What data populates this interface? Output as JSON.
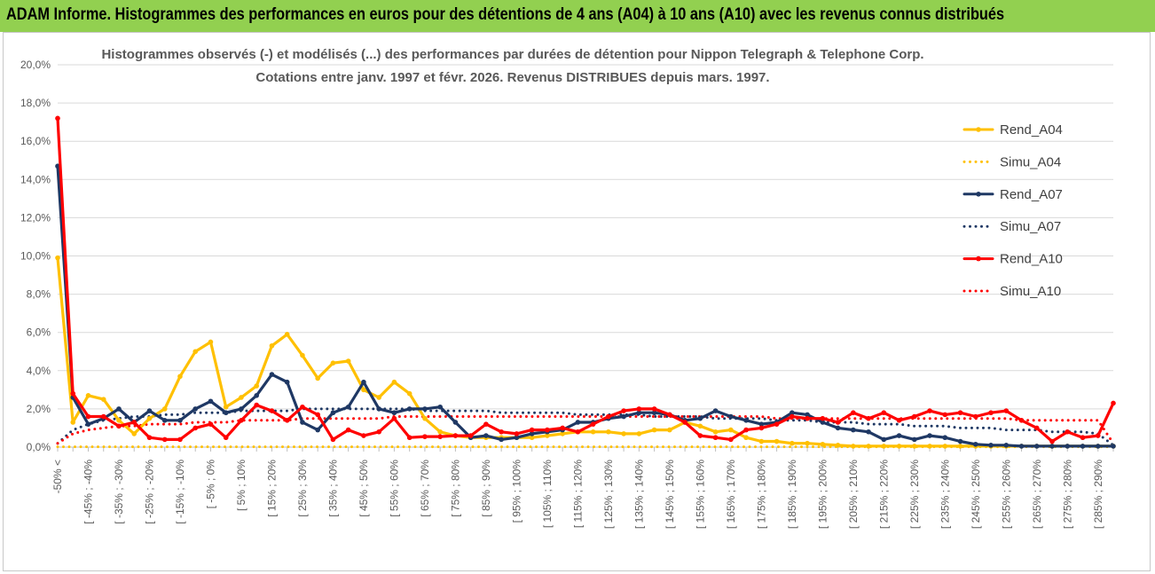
{
  "banner": {
    "title": "ADAM Informe. Histogrammes des performances en euros pour des détentions de 4 ans (A04) à 10 ans (A10) avec les revenus connus distribués"
  },
  "chart_data": {
    "type": "line",
    "title_line1": "Histogrammes observés (-) et modélisés (...) des performances par durées de détention pour Nippon Telegraph & Telephone Corp.",
    "title_line2": "Cotations entre janv. 1997 et févr. 2026. Revenus DISTRIBUES depuis mars. 1997.",
    "xlabel": "",
    "ylabel": "",
    "ylim": [
      0,
      20
    ],
    "y_ticks": [
      "0,0%",
      "2,0%",
      "4,0%",
      "6,0%",
      "8,0%",
      "10,0%",
      "12,0%",
      "14,0%",
      "16,0%",
      "18,0%",
      "20,0%"
    ],
    "x_labels": [
      "-50% <",
      "[ -45% ; -40%",
      "[ -35% ; -30%",
      "[ -25% ; -20%",
      "[ -15% ; -10%",
      "[ -5% ; 0%",
      "[ 5% ; 10%",
      "[ 15% ; 20%",
      "[ 25% ; 30%",
      "[ 35% ; 40%",
      "[ 45% ; 50%",
      "[ 55% ; 60%",
      "[ 65% ; 70%",
      "[ 75% ; 80%",
      "[ 85% ; 90%",
      "[ 95% ; 100%",
      "[ 105% ; 110%",
      "[ 115% ; 120%",
      "[ 125% ; 130%",
      "[ 135% ; 140%",
      "[ 145% ; 150%",
      "[ 155% ; 160%",
      "[ 165% ; 170%",
      "[ 175% ; 180%",
      "[ 185% ; 190%",
      "[ 195% ; 200%",
      "[ 205% ; 210%",
      "[ 215% ; 220%",
      "[ 225% ; 230%",
      "[ 235% ; 240%",
      "[ 245% ; 250%",
      "[ 255% ; 260%",
      "[ 265% ; 270%",
      "[ 275% ; 280%",
      "[ 285% ; 290%"
    ],
    "n_points": 70,
    "series": [
      {
        "name": "Rend_A04",
        "color": "#FFC000",
        "style": "solid",
        "values": [
          9.9,
          1.3,
          2.7,
          2.5,
          1.4,
          0.7,
          1.5,
          2.0,
          3.7,
          5.0,
          5.5,
          2.1,
          2.6,
          3.2,
          5.3,
          5.9,
          4.8,
          3.6,
          4.4,
          4.5,
          3.0,
          2.6,
          3.4,
          2.8,
          1.5,
          0.8,
          0.6,
          0.5,
          0.5,
          0.5,
          0.5,
          0.5,
          0.6,
          0.7,
          0.8,
          0.8,
          0.8,
          0.7,
          0.7,
          0.9,
          0.9,
          1.3,
          1.1,
          0.8,
          0.9,
          0.5,
          0.3,
          0.3,
          0.2,
          0.2,
          0.15,
          0.1,
          0.05,
          0.05,
          0.05,
          0.05,
          0.05,
          0.05,
          0.05,
          0.05,
          0.05,
          0.05,
          0.05,
          0.05,
          0.05,
          0.05,
          0.05,
          0.05,
          0.05,
          0.05
        ]
      },
      {
        "name": "Simu_A04",
        "color": "#FFC000",
        "style": "dotted",
        "values": [
          0.02,
          0.02,
          0.02,
          0.02,
          0.02,
          0.02,
          0.02,
          0.02,
          0.02,
          0.02,
          0.02,
          0.02,
          0.02,
          0.02,
          0.02,
          0.02,
          0.02,
          0.02,
          0.02,
          0.02,
          0.02,
          0.02,
          0.02,
          0.02,
          0.02,
          0.02,
          0.02,
          0.02,
          0.02,
          0.02,
          0.02,
          0.02,
          0.02,
          0.02,
          0.02,
          0.02,
          0.02,
          0.02,
          0.02,
          0.02,
          0.02,
          0.02,
          0.02,
          0.02,
          0.02,
          0.02,
          0.02,
          0.02,
          0.02,
          0.02,
          0.02,
          0.02,
          0.02,
          0.02,
          0.02,
          0.02,
          0.02,
          0.02,
          0.02,
          0.02,
          0.02,
          0.02,
          0.02,
          0.02,
          0.02,
          0.02,
          0.02,
          0.02,
          0.02,
          0.02
        ]
      },
      {
        "name": "Rend_A07",
        "color": "#1F3864",
        "style": "solid",
        "values": [
          14.7,
          2.6,
          1.2,
          1.5,
          2.0,
          1.3,
          1.9,
          1.4,
          1.4,
          2.0,
          2.4,
          1.8,
          2.0,
          2.7,
          3.8,
          3.4,
          1.3,
          0.9,
          1.8,
          2.1,
          3.4,
          2.0,
          1.8,
          2.0,
          2.0,
          2.1,
          1.3,
          0.5,
          0.6,
          0.4,
          0.5,
          0.7,
          0.8,
          0.9,
          1.3,
          1.3,
          1.5,
          1.6,
          1.8,
          1.8,
          1.7,
          1.4,
          1.5,
          1.9,
          1.6,
          1.4,
          1.2,
          1.3,
          1.8,
          1.7,
          1.3,
          1.0,
          0.9,
          0.8,
          0.4,
          0.6,
          0.4,
          0.6,
          0.5,
          0.3,
          0.15,
          0.1,
          0.1,
          0.05,
          0.05,
          0.05,
          0.05,
          0.05,
          0.05,
          0.05
        ]
      },
      {
        "name": "Simu_A07",
        "color": "#1F3864",
        "style": "dotted",
        "values": [
          0.2,
          0.9,
          1.2,
          1.4,
          1.5,
          1.6,
          1.6,
          1.7,
          1.7,
          1.8,
          1.8,
          1.8,
          1.9,
          1.9,
          1.9,
          1.9,
          2.0,
          2.0,
          2.0,
          2.0,
          2.0,
          2.0,
          2.0,
          2.0,
          1.9,
          1.9,
          1.9,
          1.9,
          1.9,
          1.8,
          1.8,
          1.8,
          1.8,
          1.8,
          1.7,
          1.7,
          1.7,
          1.7,
          1.7,
          1.6,
          1.6,
          1.6,
          1.6,
          1.5,
          1.5,
          1.5,
          1.5,
          1.4,
          1.4,
          1.4,
          1.3,
          1.3,
          1.3,
          1.2,
          1.2,
          1.2,
          1.1,
          1.1,
          1.1,
          1.0,
          1.0,
          1.0,
          0.9,
          0.9,
          0.9,
          0.8,
          0.8,
          0.8,
          0.7,
          0.1
        ]
      },
      {
        "name": "Rend_A10",
        "color": "#FF0000",
        "style": "solid",
        "values": [
          17.2,
          2.8,
          1.6,
          1.6,
          1.1,
          1.3,
          0.5,
          0.4,
          0.4,
          1.0,
          1.2,
          0.5,
          1.4,
          2.2,
          1.9,
          1.4,
          2.1,
          1.7,
          0.4,
          0.9,
          0.6,
          0.8,
          1.5,
          0.5,
          0.55,
          0.55,
          0.6,
          0.6,
          1.2,
          0.8,
          0.7,
          0.9,
          0.9,
          1.0,
          0.8,
          1.2,
          1.6,
          1.9,
          2.0,
          2.0,
          1.7,
          1.3,
          0.6,
          0.5,
          0.4,
          0.9,
          1.0,
          1.2,
          1.6,
          1.5,
          1.5,
          1.3,
          1.8,
          1.5,
          1.8,
          1.4,
          1.6,
          1.9,
          1.7,
          1.8,
          1.6,
          1.8,
          1.9,
          1.4,
          1.0,
          0.3,
          0.8,
          0.5,
          0.6,
          2.3
        ]
      },
      {
        "name": "Simu_A10",
        "color": "#FF0000",
        "style": "dotted",
        "values": [
          0.2,
          0.7,
          0.9,
          1.0,
          1.1,
          1.1,
          1.2,
          1.2,
          1.2,
          1.3,
          1.3,
          1.3,
          1.4,
          1.4,
          1.4,
          1.4,
          1.5,
          1.5,
          1.5,
          1.5,
          1.5,
          1.5,
          1.6,
          1.6,
          1.6,
          1.6,
          1.6,
          1.6,
          1.6,
          1.6,
          1.6,
          1.6,
          1.6,
          1.6,
          1.6,
          1.6,
          1.6,
          1.6,
          1.6,
          1.6,
          1.6,
          1.6,
          1.6,
          1.6,
          1.6,
          1.6,
          1.6,
          1.5,
          1.5,
          1.5,
          1.5,
          1.5,
          1.5,
          1.5,
          1.5,
          1.5,
          1.5,
          1.5,
          1.5,
          1.5,
          1.5,
          1.5,
          1.5,
          1.4,
          1.4,
          1.4,
          1.4,
          1.4,
          1.4,
          0.2
        ]
      }
    ],
    "legend": [
      "Rend_A04",
      "Simu_A04",
      "Rend_A07",
      "Simu_A07",
      "Rend_A10",
      "Simu_A10"
    ],
    "legend_position": "right"
  }
}
